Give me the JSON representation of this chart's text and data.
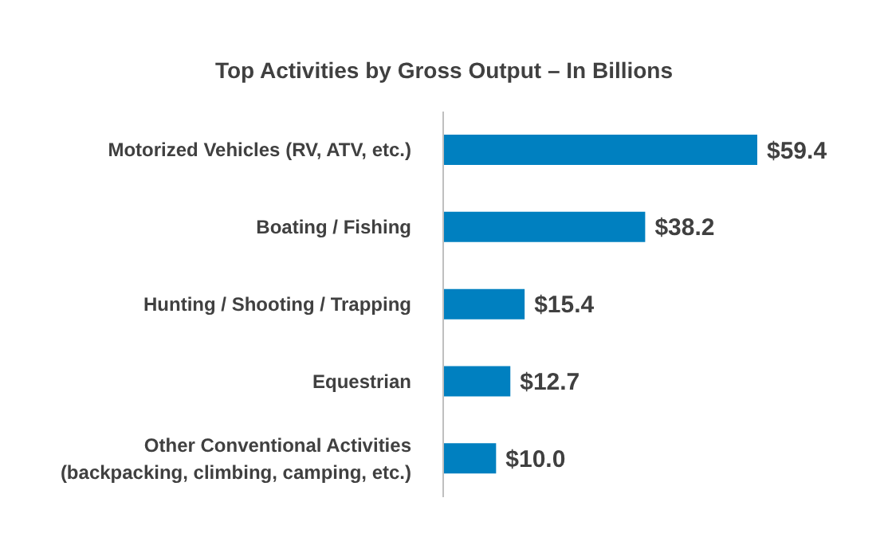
{
  "chart_data": {
    "type": "bar",
    "orientation": "horizontal",
    "title": "Top Activities by Gross Output – In Billions",
    "categories": [
      "Motorized Vehicles (RV, ATV, etc.)",
      "Boating / Fishing",
      "Hunting / Shooting / Trapping",
      "Equestrian",
      "Other Conventional Activities (backpacking, climbing, camping, etc.)"
    ],
    "values": [
      59.4,
      38.2,
      15.4,
      12.7,
      10.0
    ],
    "value_labels": [
      "$59.4",
      "$38.2",
      "$15.4",
      "$12.7",
      "$10.0"
    ],
    "color": "#0080c0"
  }
}
